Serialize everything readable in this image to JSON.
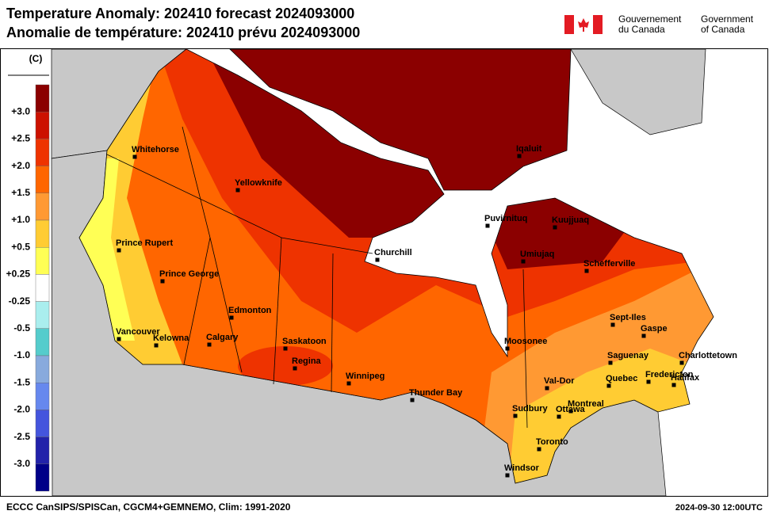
{
  "header": {
    "title_line1": "Temperature Anomaly: 202410 forecast 2024093000",
    "title_line2": "Anomalie de température: 202410 prévu 2024093000",
    "government_fr": [
      "Gouvernement",
      "du Canada"
    ],
    "government_en": [
      "Government",
      "of Canada"
    ]
  },
  "legend": {
    "unit": "(C)",
    "labels": [
      "+3.0",
      "+2.5",
      "+2.0",
      "+1.5",
      "+1.0",
      "+0.5",
      "+0.25",
      "-0.25",
      "-0.5",
      "-1.0",
      "-1.5",
      "-2.0",
      "-2.5",
      "-3.0"
    ],
    "colors": [
      "#8b0000",
      "#cc1100",
      "#ee3300",
      "#ff6600",
      "#ff9933",
      "#ffcc33",
      "#ffff55",
      "#ffffff",
      "#aaeeee",
      "#55cccc",
      "#88aadd",
      "#6688ee",
      "#4455dd",
      "#2222aa",
      "#000088"
    ]
  },
  "map": {
    "cities": [
      "Whitehorse",
      "Yellowknife",
      "Prince Rupert",
      "Prince George",
      "Edmonton",
      "Calgary",
      "Vancouver",
      "Kelowna",
      "Saskatoon",
      "Regina",
      "Winnipeg",
      "Churchill",
      "Thunder Bay",
      "Iqaluit",
      "Puvirnituq",
      "Kuujjuaq",
      "Umiujaq",
      "Schefferville",
      "Moosonee",
      "Sept-Iles",
      "Gaspe",
      "Saguenay",
      "Charlottetown",
      "Halifax",
      "Fredericton",
      "Quebec",
      "Val-Dor",
      "Montreal",
      "Ottawa",
      "Sudbury",
      "Toronto",
      "Windsor"
    ]
  },
  "footer": {
    "source": "ECCC CanSIPS/SPISCan, CGCM4+GEMNEMO, Clim: 1991-2020",
    "timestamp": "2024-09-30 12:00UTC"
  }
}
